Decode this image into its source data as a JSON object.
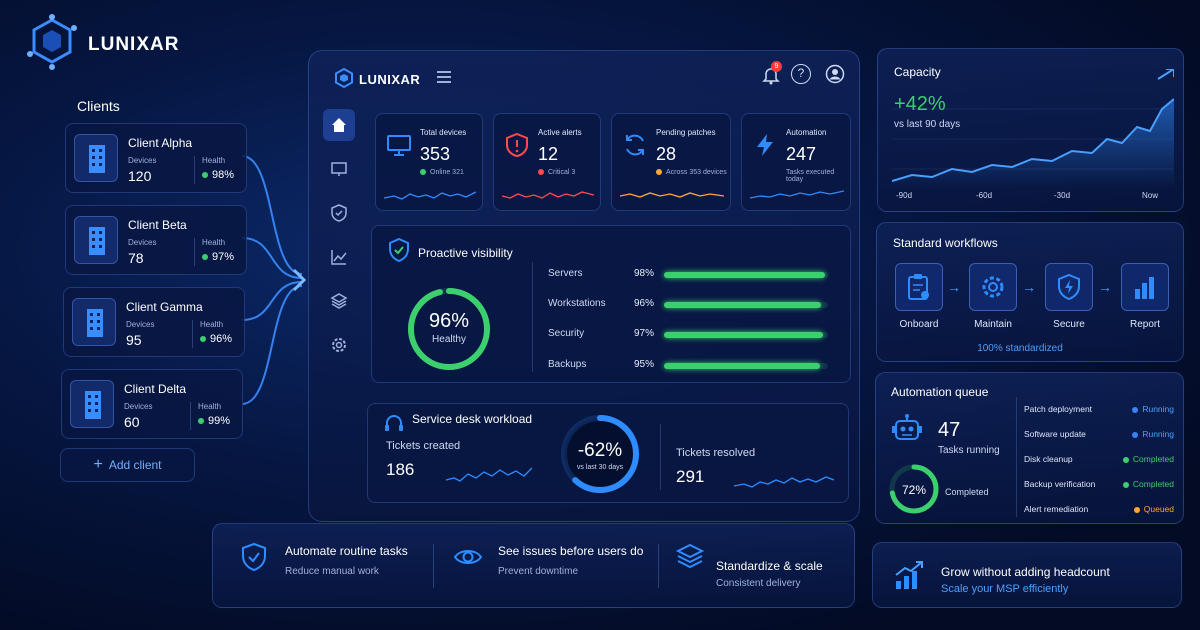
{
  "brand": {
    "name": "LUNIXAR"
  },
  "clients": {
    "title": "Clients",
    "devices_label": "Devices",
    "health_label": "Health",
    "items": [
      {
        "name": "Client Alpha",
        "devices": "120",
        "health": "98%"
      },
      {
        "name": "Client Beta",
        "devices": "78",
        "health": "97%"
      },
      {
        "name": "Client Gamma",
        "devices": "95",
        "health": "96%"
      },
      {
        "name": "Client Delta",
        "devices": "60",
        "health": "99%"
      }
    ],
    "add_label": "Add client"
  },
  "app": {
    "brand": "LUNIXAR",
    "notification_count": "9"
  },
  "stats": [
    {
      "label": "Total devices",
      "value": "353",
      "sub": "Online 321",
      "dot": "#3ccf6e",
      "color": "#2f8cff"
    },
    {
      "label": "Active alerts",
      "value": "12",
      "sub": "Critical 3",
      "dot": "#ff4b4b",
      "color": "#ff4b4b"
    },
    {
      "label": "Pending patches",
      "value": "28",
      "sub": "Across 353 devices",
      "dot": "#ffa836",
      "color": "#2f8cff"
    },
    {
      "label": "Automation",
      "value": "247",
      "sub": "Tasks executed today",
      "dot": "",
      "color": "#2f8cff"
    }
  ],
  "visibility": {
    "title": "Proactive visibility",
    "ring_value": "96%",
    "ring_label": "Healthy",
    "ring_fraction": 0.96,
    "rows": [
      {
        "label": "Servers",
        "pct": "98%",
        "fraction": 0.98
      },
      {
        "label": "Workstations",
        "pct": "96%",
        "fraction": 0.96
      },
      {
        "label": "Security",
        "pct": "97%",
        "fraction": 0.97
      },
      {
        "label": "Backups",
        "pct": "95%",
        "fraction": 0.95
      }
    ]
  },
  "service_desk": {
    "title": "Service desk workload",
    "created_label": "Tickets created",
    "created_value": "186",
    "ring_value": "-62%",
    "ring_label": "vs last 30 days",
    "ring_fraction": 0.62,
    "resolved_label": "Tickets resolved",
    "resolved_value": "291"
  },
  "features": [
    {
      "title": "Automate routine tasks",
      "sub": "Reduce manual work",
      "icon": "shield-check-icon"
    },
    {
      "title": "See issues before users do",
      "sub": "Prevent downtime",
      "icon": "eye-icon"
    },
    {
      "title": "Standardize & scale",
      "sub": "Consistent delivery",
      "icon": "layers-icon"
    }
  ],
  "capacity": {
    "title": "Capacity",
    "value": "+42%",
    "sub": "vs last 90 days",
    "x_ticks": [
      "-90d",
      "-60d",
      "-30d",
      "Now"
    ]
  },
  "workflows": {
    "title": "Standard workflows",
    "steps": [
      "Onboard",
      "Maintain",
      "Secure",
      "Report"
    ],
    "footer": "100% standardized"
  },
  "automation_queue": {
    "title": "Automation queue",
    "running_value": "47",
    "running_label": "Tasks running",
    "ring_value": "72%",
    "ring_fraction": 0.72,
    "ring_label": "Completed",
    "items": [
      {
        "name": "Patch deployment",
        "status": "Running",
        "color": "#3b82f6"
      },
      {
        "name": "Software update",
        "status": "Running",
        "color": "#3b82f6"
      },
      {
        "name": "Disk cleanup",
        "status": "Completed",
        "color": "#3ccf6e"
      },
      {
        "name": "Backup verification",
        "status": "Completed",
        "color": "#3ccf6e"
      },
      {
        "name": "Alert remediation",
        "status": "Queued",
        "color": "#ffa836"
      }
    ]
  },
  "grow": {
    "title": "Grow without adding headcount",
    "sub": "Scale your MSP efficiently"
  }
}
